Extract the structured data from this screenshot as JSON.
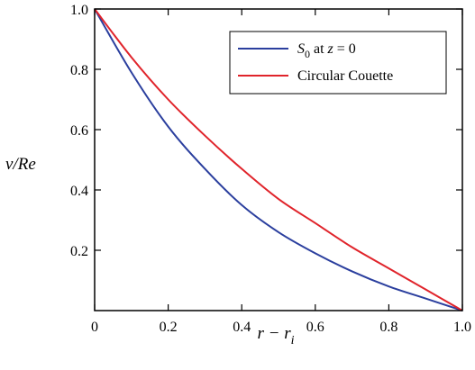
{
  "chart_data": {
    "type": "line",
    "xlabel": "r − r_i",
    "ylabel": "v/Re",
    "xlim": [
      0,
      1
    ],
    "ylim": [
      0,
      1
    ],
    "grid": false,
    "legend_position": "top-right",
    "x_ticks": [
      "0",
      "0.2",
      "0.4",
      "0.6",
      "0.8",
      "1.0"
    ],
    "y_ticks": [
      "0.2",
      "0.4",
      "0.6",
      "0.8",
      "1.0"
    ],
    "series": [
      {
        "name": "S0 at z = 0",
        "color": "#2b3f9e",
        "x": [
          0,
          0.1,
          0.2,
          0.3,
          0.4,
          0.5,
          0.6,
          0.7,
          0.8,
          0.9,
          1.0
        ],
        "y": [
          1.0,
          0.79,
          0.61,
          0.47,
          0.35,
          0.26,
          0.19,
          0.13,
          0.08,
          0.04,
          0.0
        ]
      },
      {
        "name": "Circular Couette",
        "color": "#e0242b",
        "x": [
          0,
          0.1,
          0.2,
          0.3,
          0.4,
          0.5,
          0.6,
          0.7,
          0.8,
          0.9,
          1.0
        ],
        "y": [
          1.0,
          0.84,
          0.7,
          0.58,
          0.47,
          0.37,
          0.29,
          0.21,
          0.14,
          0.07,
          0.0
        ]
      }
    ]
  }
}
